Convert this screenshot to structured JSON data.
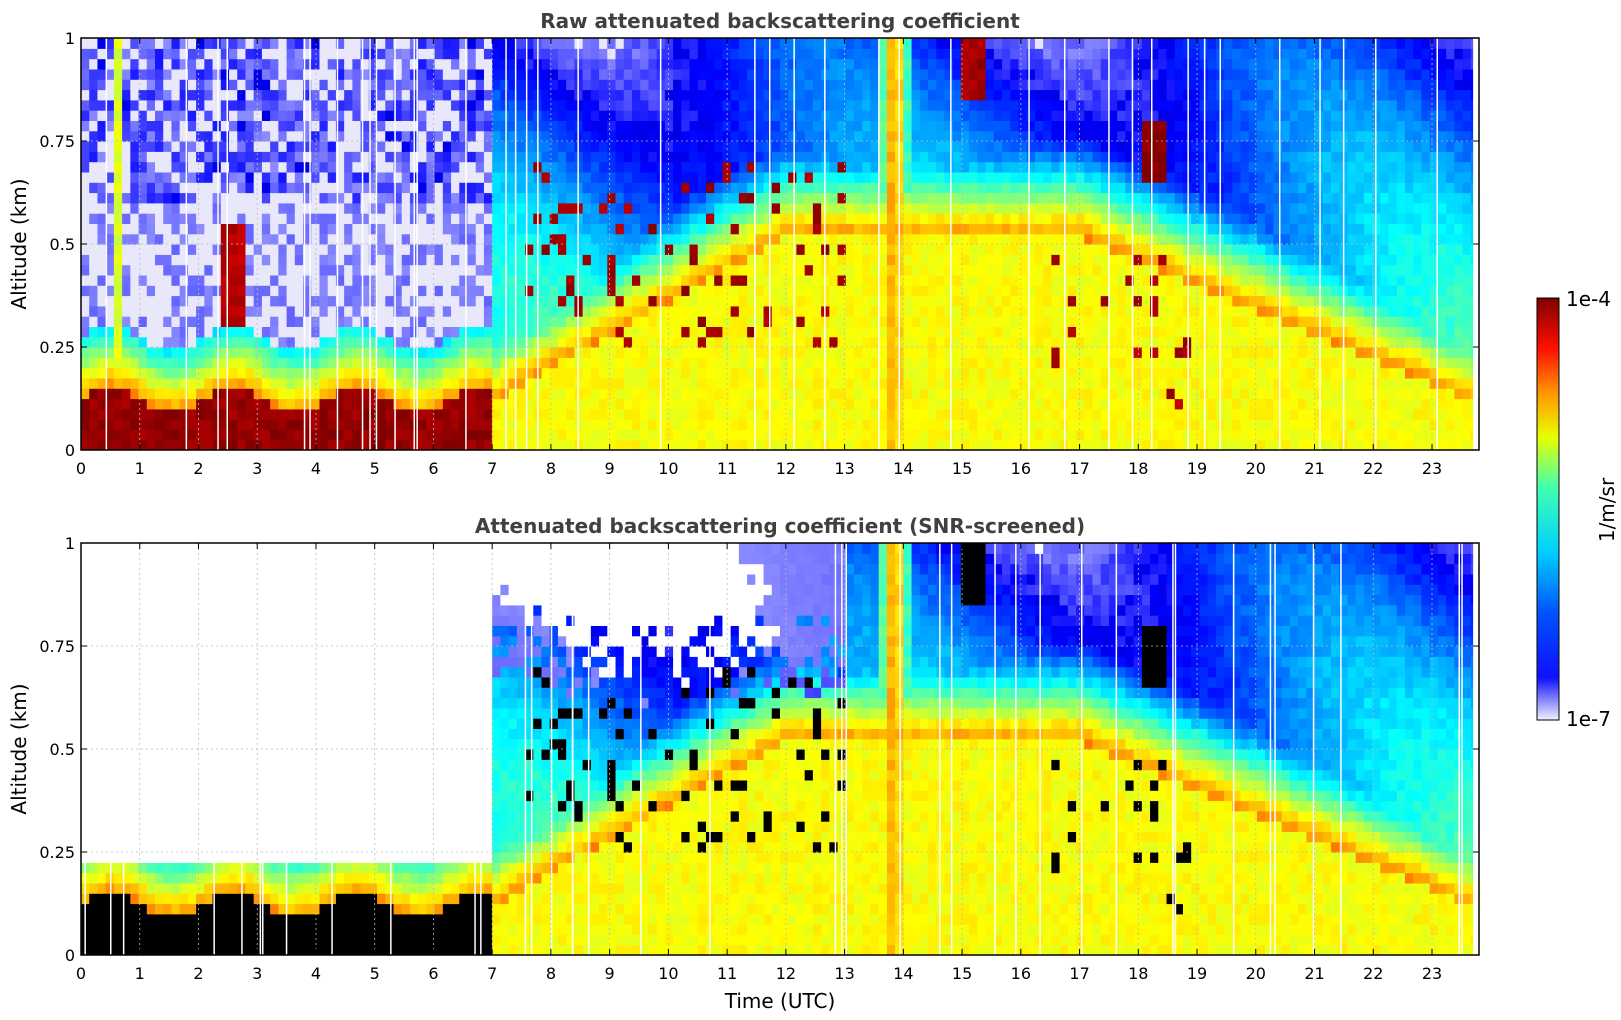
{
  "chart_data": [
    {
      "type": "heatmap",
      "title": "Raw attenuated backscattering coefficient",
      "xlabel": "",
      "ylabel": "Altitude (km)",
      "xlim": [
        0,
        23.8
      ],
      "ylim": [
        0,
        1
      ],
      "x_ticks": [
        "0",
        "1",
        "2",
        "3",
        "4",
        "5",
        "6",
        "7",
        "8",
        "9",
        "10",
        "11",
        "12",
        "13",
        "14",
        "15",
        "16",
        "17",
        "18",
        "19",
        "20",
        "21",
        "22",
        "23"
      ],
      "y_ticks": [
        "0",
        "0.25",
        "0.5",
        "0.75",
        "1"
      ],
      "grid": true,
      "screened": false
    },
    {
      "type": "heatmap",
      "title": "Attenuated backscattering coefficient (SNR-screened)",
      "xlabel": "Time (UTC)",
      "ylabel": "Altitude (km)",
      "xlim": [
        0,
        23.8
      ],
      "ylim": [
        0,
        1
      ],
      "x_ticks": [
        "0",
        "1",
        "2",
        "3",
        "4",
        "5",
        "6",
        "7",
        "8",
        "9",
        "10",
        "11",
        "12",
        "13",
        "14",
        "15",
        "16",
        "17",
        "18",
        "19",
        "20",
        "21",
        "22",
        "23"
      ],
      "y_ticks": [
        "0",
        "0.25",
        "0.5",
        "0.75",
        "1"
      ],
      "grid": true,
      "screened": true
    }
  ],
  "colorbar": {
    "label": "1/m/sr",
    "min_label": "1e-7",
    "max_label": "1e-4",
    "colormap": "jet",
    "scale": "log"
  }
}
